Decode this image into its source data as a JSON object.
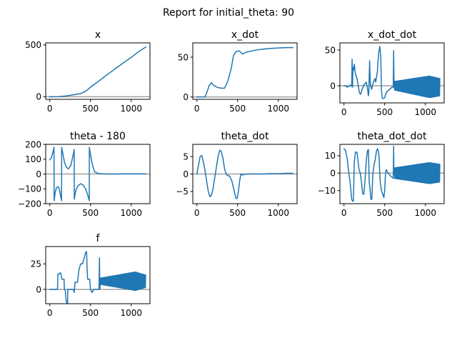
{
  "suptitle": "Report for initial_theta: 90",
  "colors": {
    "series": "#1f77b4",
    "zero_line": "#a0a0a0"
  },
  "chart_data": [
    {
      "type": "line",
      "title": "x",
      "xlim": [
        -50,
        1230
      ],
      "ylim": [
        -25,
        520
      ],
      "xticks": [
        0,
        500,
        1000
      ],
      "yticks": [
        0,
        500
      ],
      "zero_line": true,
      "series": [
        {
          "points": [
            [
              0,
              0
            ],
            [
              100,
              1
            ],
            [
              200,
              8
            ],
            [
              300,
              20
            ],
            [
              380,
              30
            ],
            [
              420,
              45
            ],
            [
              460,
              65
            ],
            [
              500,
              92
            ],
            [
              600,
              150
            ],
            [
              700,
              210
            ],
            [
              800,
              268
            ],
            [
              900,
              325
            ],
            [
              1000,
              380
            ],
            [
              1100,
              440
            ],
            [
              1180,
              480
            ]
          ]
        }
      ]
    },
    {
      "type": "line",
      "title": "x_dot",
      "xlim": [
        -50,
        1230
      ],
      "ylim": [
        -3,
        68
      ],
      "xticks": [
        0,
        500,
        1000
      ],
      "yticks": [
        0,
        50
      ],
      "zero_line": true,
      "series": [
        {
          "points": [
            [
              0,
              0
            ],
            [
              100,
              0
            ],
            [
              120,
              5
            ],
            [
              150,
              14
            ],
            [
              180,
              18
            ],
            [
              200,
              15
            ],
            [
              250,
              12
            ],
            [
              300,
              11
            ],
            [
              340,
              11
            ],
            [
              380,
              20
            ],
            [
              420,
              35
            ],
            [
              450,
              52
            ],
            [
              480,
              57
            ],
            [
              520,
              58
            ],
            [
              560,
              54
            ],
            [
              600,
              56
            ],
            [
              700,
              58.5
            ],
            [
              800,
              60
            ],
            [
              900,
              61
            ],
            [
              1000,
              61.6
            ],
            [
              1100,
              62
            ],
            [
              1180,
              62
            ]
          ]
        }
      ]
    },
    {
      "type": "line",
      "title": "x_dot_dot",
      "xlim": [
        -50,
        1230
      ],
      "ylim": [
        -24,
        60
      ],
      "xticks": [
        0,
        500,
        1000
      ],
      "yticks": [
        0,
        50
      ],
      "zero_line": true,
      "series": [
        {
          "points": [
            [
              0,
              0
            ],
            [
              20,
              0
            ],
            [
              40,
              -2
            ],
            [
              60,
              -1
            ],
            [
              80,
              1
            ],
            [
              95,
              -1
            ],
            [
              100,
              37
            ],
            [
              105,
              -2
            ],
            [
              110,
              25
            ],
            [
              118,
              26
            ],
            [
              120,
              22
            ],
            [
              125,
              30
            ],
            [
              130,
              28
            ],
            [
              135,
              20
            ],
            [
              145,
              15
            ],
            [
              160,
              10
            ],
            [
              175,
              0
            ],
            [
              190,
              -10
            ],
            [
              205,
              -12
            ],
            [
              225,
              -4
            ],
            [
              250,
              2
            ],
            [
              275,
              5
            ],
            [
              290,
              -5
            ],
            [
              300,
              -14
            ],
            [
              305,
              -10
            ],
            [
              315,
              35
            ],
            [
              322,
              5
            ],
            [
              330,
              -1
            ],
            [
              340,
              -5
            ],
            [
              360,
              5
            ],
            [
              380,
              10
            ],
            [
              390,
              5
            ],
            [
              410,
              20
            ],
            [
              425,
              45
            ],
            [
              440,
              55
            ],
            [
              452,
              40
            ],
            [
              460,
              -5
            ],
            [
              470,
              -17
            ],
            [
              480,
              -18
            ],
            [
              500,
              -17
            ],
            [
              510,
              -12
            ],
            [
              530,
              -8
            ],
            [
              560,
              -5
            ],
            [
              590,
              -2
            ],
            [
              605,
              -2
            ],
            [
              610,
              49
            ],
            [
              615,
              -3
            ],
            [
              620,
              0
            ]
          ]
        }
      ],
      "oscillation": {
        "x_start": 620,
        "x_end": 1180,
        "amp_start": 6,
        "amp_peak": 15,
        "x_peak": 1050,
        "amp_end": 12,
        "center_start": 0,
        "center_end": -2
      }
    },
    {
      "type": "line",
      "title": "theta - 180",
      "xlim": [
        -50,
        1230
      ],
      "ylim": [
        -200,
        200
      ],
      "xticks": [
        0,
        500,
        1000
      ],
      "yticks": [
        -200,
        -100,
        0,
        100,
        200
      ],
      "zero_line": true,
      "series": [
        {
          "points": [
            [
              0,
              95
            ],
            [
              20,
              110
            ],
            [
              40,
              150
            ],
            [
              52,
              180
            ],
            [
              53,
              -180
            ],
            [
              65,
              -130
            ],
            [
              80,
              -95
            ],
            [
              100,
              -85
            ],
            [
              115,
              -95
            ],
            [
              130,
              -140
            ],
            [
              145,
              -180
            ],
            [
              146,
              180
            ],
            [
              160,
              140
            ],
            [
              180,
              80
            ],
            [
              205,
              45
            ],
            [
              230,
              35
            ],
            [
              260,
              60
            ],
            [
              280,
              110
            ],
            [
              295,
              150
            ],
            [
              300,
              165
            ],
            [
              301,
              -170
            ],
            [
              320,
              -110
            ],
            [
              345,
              -80
            ],
            [
              380,
              -65
            ],
            [
              410,
              -75
            ],
            [
              440,
              -100
            ],
            [
              465,
              -140
            ],
            [
              485,
              -180
            ],
            [
              486,
              180
            ],
            [
              500,
              130
            ],
            [
              520,
              70
            ],
            [
              550,
              15
            ],
            [
              600,
              3
            ],
            [
              700,
              0
            ],
            [
              800,
              0
            ],
            [
              900,
              1
            ],
            [
              1000,
              1
            ],
            [
              1100,
              1
            ],
            [
              1180,
              1
            ]
          ]
        }
      ]
    },
    {
      "type": "line",
      "title": "theta_dot",
      "xlim": [
        -50,
        1230
      ],
      "ylim": [
        -8.5,
        8.5
      ],
      "xticks": [
        0,
        500,
        1000
      ],
      "yticks": [
        -5,
        0,
        5
      ],
      "zero_line": true,
      "series": [
        {
          "points": [
            [
              0,
              0
            ],
            [
              20,
              2.5
            ],
            [
              40,
              5
            ],
            [
              60,
              5.3
            ],
            [
              80,
              3.5
            ],
            [
              100,
              1
            ],
            [
              120,
              -2
            ],
            [
              140,
              -5
            ],
            [
              160,
              -6.5
            ],
            [
              180,
              -6
            ],
            [
              200,
              -4
            ],
            [
              220,
              -1
            ],
            [
              240,
              2
            ],
            [
              260,
              5
            ],
            [
              280,
              6.8
            ],
            [
              300,
              6.5
            ],
            [
              320,
              4.5
            ],
            [
              340,
              1.5
            ],
            [
              360,
              0
            ],
            [
              380,
              -0.5
            ],
            [
              400,
              -0.5
            ],
            [
              430,
              -2
            ],
            [
              460,
              -5
            ],
            [
              480,
              -7
            ],
            [
              495,
              -7
            ],
            [
              510,
              -5
            ],
            [
              525,
              -2
            ],
            [
              540,
              0
            ],
            [
              560,
              -0.3
            ],
            [
              600,
              0
            ],
            [
              700,
              0
            ],
            [
              800,
              0
            ],
            [
              900,
              0.1
            ],
            [
              1000,
              0.1
            ],
            [
              1100,
              0.2
            ],
            [
              1180,
              0.2
            ]
          ]
        }
      ]
    },
    {
      "type": "line",
      "title": "theta_dot_dot",
      "xlim": [
        -50,
        1230
      ],
      "ylim": [
        -17.5,
        16.5
      ],
      "xticks": [
        0,
        500,
        1000
      ],
      "yticks": [
        -10,
        0,
        10
      ],
      "zero_line": true,
      "series": [
        {
          "points": [
            [
              0,
              14
            ],
            [
              20,
              13
            ],
            [
              40,
              8
            ],
            [
              60,
              0
            ],
            [
              75,
              -5
            ],
            [
              85,
              -10
            ],
            [
              95,
              -15
            ],
            [
              105,
              -16
            ],
            [
              115,
              -16
            ],
            [
              120,
              -8
            ],
            [
              125,
              5
            ],
            [
              140,
              12
            ],
            [
              160,
              12
            ],
            [
              185,
              2
            ],
            [
              200,
              0
            ],
            [
              215,
              -5
            ],
            [
              230,
              -12
            ],
            [
              245,
              -12
            ],
            [
              260,
              -3
            ],
            [
              275,
              8
            ],
            [
              290,
              13
            ],
            [
              300,
              13.5
            ],
            [
              310,
              -5
            ],
            [
              320,
              -9
            ],
            [
              330,
              -15
            ],
            [
              342,
              -15
            ],
            [
              355,
              0
            ],
            [
              370,
              5
            ],
            [
              385,
              8
            ],
            [
              400,
              13
            ],
            [
              415,
              14
            ],
            [
              430,
              10
            ],
            [
              445,
              -5
            ],
            [
              460,
              -10
            ],
            [
              475,
              -12
            ],
            [
              490,
              -14
            ],
            [
              500,
              -10
            ],
            [
              510,
              0
            ],
            [
              520,
              2
            ],
            [
              540,
              0
            ],
            [
              560,
              -1
            ],
            [
              580,
              -2
            ],
            [
              605,
              -3
            ],
            [
              610,
              15.5
            ],
            [
              613,
              -1
            ],
            [
              620,
              0
            ]
          ]
        }
      ],
      "oscillation": {
        "x_start": 620,
        "x_end": 1180,
        "amp_start": 3,
        "amp_peak": 6,
        "x_peak": 1050,
        "amp_end": 5,
        "center_start": 0,
        "center_end": 0
      }
    },
    {
      "type": "line",
      "title": "f",
      "xlim": [
        -50,
        1230
      ],
      "ylim": [
        -14,
        42
      ],
      "xticks": [
        0,
        500,
        1000
      ],
      "yticks": [
        0,
        25
      ],
      "zero_line": true,
      "series": [
        {
          "points": [
            [
              0,
              0
            ],
            [
              95,
              0
            ],
            [
              100,
              15
            ],
            [
              115,
              15
            ],
            [
              118,
              16
            ],
            [
              135,
              16
            ],
            [
              150,
              10
            ],
            [
              175,
              10
            ],
            [
              180,
              0
            ],
            [
              190,
              -1
            ],
            [
              200,
              -10
            ],
            [
              210,
              -14
            ],
            [
              218,
              -14
            ],
            [
              222,
              0
            ],
            [
              290,
              0
            ],
            [
              300,
              -3
            ],
            [
              310,
              7
            ],
            [
              340,
              7
            ],
            [
              360,
              20
            ],
            [
              380,
              25
            ],
            [
              400,
              25
            ],
            [
              420,
              30
            ],
            [
              440,
              36
            ],
            [
              452,
              37
            ],
            [
              458,
              20
            ],
            [
              465,
              10
            ],
            [
              490,
              10
            ],
            [
              500,
              0
            ],
            [
              520,
              -3
            ],
            [
              540,
              0
            ],
            [
              605,
              0
            ],
            [
              610,
              31
            ],
            [
              615,
              0
            ],
            [
              620,
              7
            ]
          ]
        }
      ],
      "oscillation": {
        "x_start": 620,
        "x_end": 1180,
        "amp_start": 3,
        "amp_peak": 9,
        "x_peak": 1050,
        "amp_end": 6,
        "center_start": 8,
        "center_end": 8
      }
    }
  ]
}
